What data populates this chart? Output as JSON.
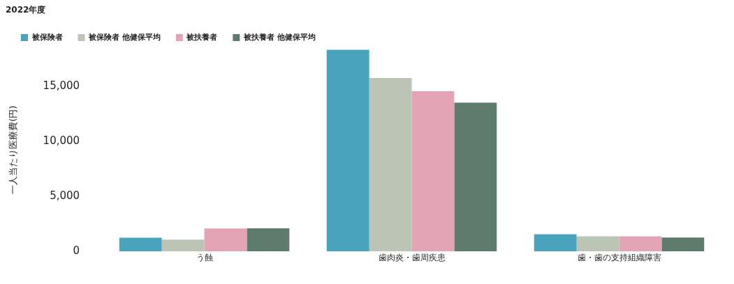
{
  "chart_data": {
    "type": "bar",
    "title": "2022年度",
    "ylabel": "一人当たり医療費(円)",
    "categories": [
      "う蝕",
      "歯肉炎・歯周疾患",
      "歯・歯の支持組織障害"
    ],
    "series": [
      {
        "name": "被保険者",
        "color": "#4aa3bc",
        "values": [
          1230,
          18360,
          1560
        ]
      },
      {
        "name": "被保険者 他健保平均",
        "color": "#bcc5b5",
        "values": [
          1060,
          15800,
          1360
        ]
      },
      {
        "name": "被扶養者",
        "color": "#e3a5b5",
        "values": [
          2070,
          14590,
          1360
        ]
      },
      {
        "name": "被扶養者 他健保平均",
        "color": "#5e7c6e",
        "values": [
          2090,
          13550,
          1260
        ]
      }
    ],
    "ylim": [
      0,
      18500
    ],
    "yticks": [
      0,
      {
        "value": 5000,
        "label": "5,000"
      },
      {
        "value": 10000,
        "label": "10,000"
      },
      {
        "value": 15000,
        "label": "15,000"
      }
    ],
    "grid": false,
    "legend": "top left"
  }
}
